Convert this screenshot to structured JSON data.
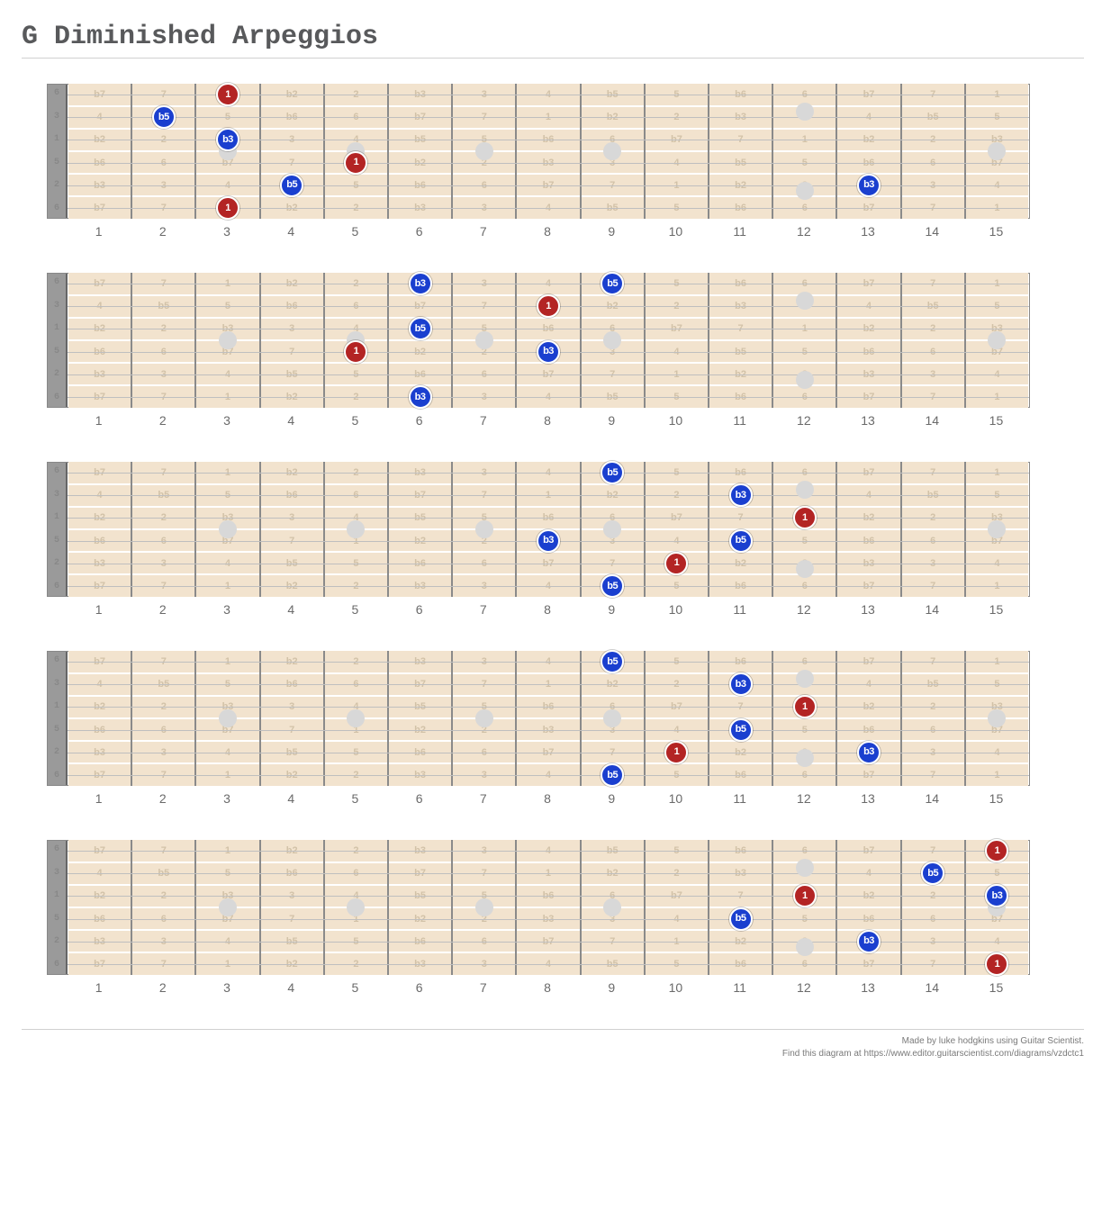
{
  "title": "G Diminished Arpeggios",
  "num_frets": 15,
  "num_strings": 6,
  "open_labels": [
    "6",
    "3",
    "1",
    "5",
    "2",
    "6"
  ],
  "fret_labels": [
    "1",
    "2",
    "3",
    "4",
    "5",
    "6",
    "7",
    "8",
    "9",
    "10",
    "11",
    "12",
    "13",
    "14",
    "15"
  ],
  "ghost_rows": [
    [
      "b7",
      "7",
      "1",
      "b2",
      "2",
      "b3",
      "3",
      "4",
      "b5",
      "5",
      "b6",
      "6",
      "b7",
      "7",
      "1"
    ],
    [
      "4",
      "b5",
      "5",
      "b6",
      "6",
      "b7",
      "7",
      "1",
      "b2",
      "2",
      "b3",
      "3",
      "4",
      "b5",
      "5"
    ],
    [
      "b2",
      "2",
      "b3",
      "3",
      "4",
      "b5",
      "5",
      "b6",
      "6",
      "b7",
      "7",
      "1",
      "b2",
      "2",
      "b3"
    ],
    [
      "b6",
      "6",
      "b7",
      "7",
      "1",
      "b2",
      "2",
      "b3",
      "3",
      "4",
      "b5",
      "5",
      "b6",
      "6",
      "b7"
    ],
    [
      "b3",
      "3",
      "4",
      "b5",
      "5",
      "b6",
      "6",
      "b7",
      "7",
      "1",
      "b2",
      "2",
      "b3",
      "3",
      "4"
    ],
    [
      "b7",
      "7",
      "1",
      "b2",
      "2",
      "b3",
      "3",
      "4",
      "b5",
      "5",
      "b6",
      "6",
      "b7",
      "7",
      "1"
    ]
  ],
  "inlay_frets_single": [
    3,
    5,
    7,
    9,
    15
  ],
  "inlay_frets_double": [
    12
  ],
  "colors": {
    "root": "#b32424",
    "other": "#1a3fcf",
    "cell_bg": "#f2e3ce",
    "ghost_text": "#d2c2a8",
    "fret_line": "#8a8a8a",
    "string": "#bfbfbf",
    "nut": "#9a9a9a",
    "inlay": "#d8d8d8",
    "title": "#58595b"
  },
  "note_colors": {
    "1": "root",
    "b3": "other",
    "b5": "other"
  },
  "boards": [
    {
      "notes": [
        {
          "string": 1,
          "fret": 3,
          "label": "1"
        },
        {
          "string": 2,
          "fret": 2,
          "label": "b5"
        },
        {
          "string": 3,
          "fret": 3,
          "label": "b3"
        },
        {
          "string": 4,
          "fret": 5,
          "label": "1"
        },
        {
          "string": 5,
          "fret": 4,
          "label": "b5"
        },
        {
          "string": 5,
          "fret": 13,
          "label": "b3"
        },
        {
          "string": 6,
          "fret": 3,
          "label": "1"
        }
      ]
    },
    {
      "notes": [
        {
          "string": 1,
          "fret": 6,
          "label": "b3"
        },
        {
          "string": 1,
          "fret": 9,
          "label": "b5"
        },
        {
          "string": 2,
          "fret": 8,
          "label": "1"
        },
        {
          "string": 3,
          "fret": 6,
          "label": "b5"
        },
        {
          "string": 4,
          "fret": 5,
          "label": "1"
        },
        {
          "string": 4,
          "fret": 8,
          "label": "b3"
        },
        {
          "string": 6,
          "fret": 6,
          "label": "b3"
        }
      ]
    },
    {
      "notes": [
        {
          "string": 1,
          "fret": 9,
          "label": "b5"
        },
        {
          "string": 2,
          "fret": 11,
          "label": "b3"
        },
        {
          "string": 3,
          "fret": 12,
          "label": "1"
        },
        {
          "string": 4,
          "fret": 8,
          "label": "b3"
        },
        {
          "string": 4,
          "fret": 11,
          "label": "b5"
        },
        {
          "string": 5,
          "fret": 10,
          "label": "1"
        },
        {
          "string": 6,
          "fret": 9,
          "label": "b5"
        }
      ]
    },
    {
      "notes": [
        {
          "string": 1,
          "fret": 9,
          "label": "b5"
        },
        {
          "string": 2,
          "fret": 11,
          "label": "b3"
        },
        {
          "string": 3,
          "fret": 12,
          "label": "1"
        },
        {
          "string": 4,
          "fret": 11,
          "label": "b5"
        },
        {
          "string": 5,
          "fret": 10,
          "label": "1"
        },
        {
          "string": 5,
          "fret": 13,
          "label": "b3"
        },
        {
          "string": 6,
          "fret": 9,
          "label": "b5"
        }
      ]
    },
    {
      "notes": [
        {
          "string": 1,
          "fret": 15,
          "label": "1"
        },
        {
          "string": 2,
          "fret": 14,
          "label": "b5"
        },
        {
          "string": 3,
          "fret": 12,
          "label": "1"
        },
        {
          "string": 3,
          "fret": 15,
          "label": "b3"
        },
        {
          "string": 4,
          "fret": 11,
          "label": "b5"
        },
        {
          "string": 5,
          "fret": 13,
          "label": "b3"
        },
        {
          "string": 6,
          "fret": 15,
          "label": "1"
        }
      ]
    }
  ],
  "footer": {
    "line1": "Made by luke hodgkins using Guitar Scientist.",
    "line2": "Find this diagram at https://www.editor.guitarscientist.com/diagrams/vzdctc1"
  },
  "layout": {
    "board_inner_width": 1068,
    "board_height": 148,
    "string_top_pad": 11,
    "string_gap": 25.2
  }
}
